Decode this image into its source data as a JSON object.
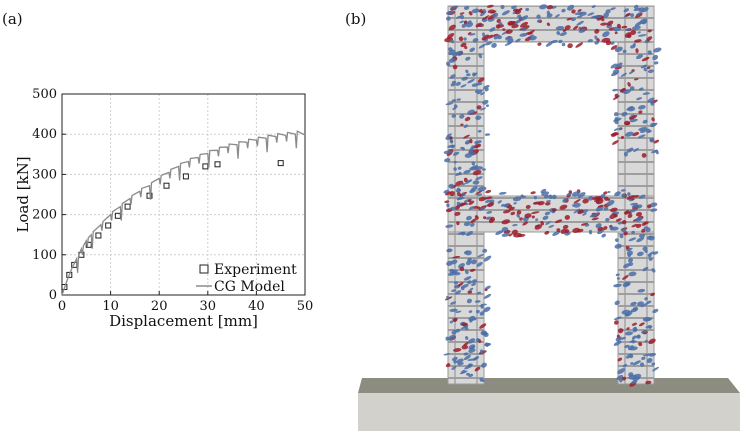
{
  "panels": {
    "a": "(a)",
    "b": "(b)"
  },
  "chart_data": {
    "type": "scatter",
    "xlabel": "Displacement [mm]",
    "ylabel": "Load [kN]",
    "xlim": [
      0,
      50
    ],
    "ylim": [
      0,
      500
    ],
    "xticks": [
      0,
      10,
      20,
      30,
      40,
      50
    ],
    "yticks": [
      0,
      100,
      200,
      300,
      400,
      500
    ],
    "grid": true,
    "legend_position": "bottom-right",
    "series": [
      {
        "name": "Experiment",
        "type": "scatter",
        "marker": "square",
        "color": "#222222",
        "x": [
          0.5,
          1.5,
          2.5,
          4.0,
          5.5,
          7.5,
          9.5,
          11.5,
          13.5,
          18.0,
          21.5,
          25.5,
          29.5,
          32.0,
          45.0
        ],
        "y": [
          20,
          50,
          75,
          100,
          125,
          148,
          173,
          197,
          220,
          247,
          272,
          295,
          320,
          325,
          328
        ]
      },
      {
        "name": "CG Model",
        "type": "line",
        "color": "#8a8a8a",
        "x": [
          0,
          1,
          2,
          3,
          4,
          5,
          6,
          8,
          10,
          12,
          14,
          16,
          18,
          20,
          22,
          24,
          26,
          28,
          30,
          32,
          34,
          36,
          38,
          40,
          42,
          44,
          46,
          48,
          50
        ],
        "y": [
          0,
          35,
          65,
          90,
          115,
          135,
          150,
          175,
          200,
          220,
          240,
          258,
          272,
          290,
          305,
          320,
          332,
          342,
          352,
          360,
          368,
          374,
          380,
          385,
          390,
          394,
          397,
          400,
          398
        ]
      }
    ]
  },
  "render_panel": {
    "description_colors": {
      "frame": "#c8c8c8",
      "frame_edge": "#9a9a9a",
      "rebar": "#7a7a7a",
      "crack_blue": "#4a6ea8",
      "crack_red": "#9b1c2a",
      "foundation_top": "#8c8c80",
      "foundation_front": "#d2d1cb"
    }
  }
}
